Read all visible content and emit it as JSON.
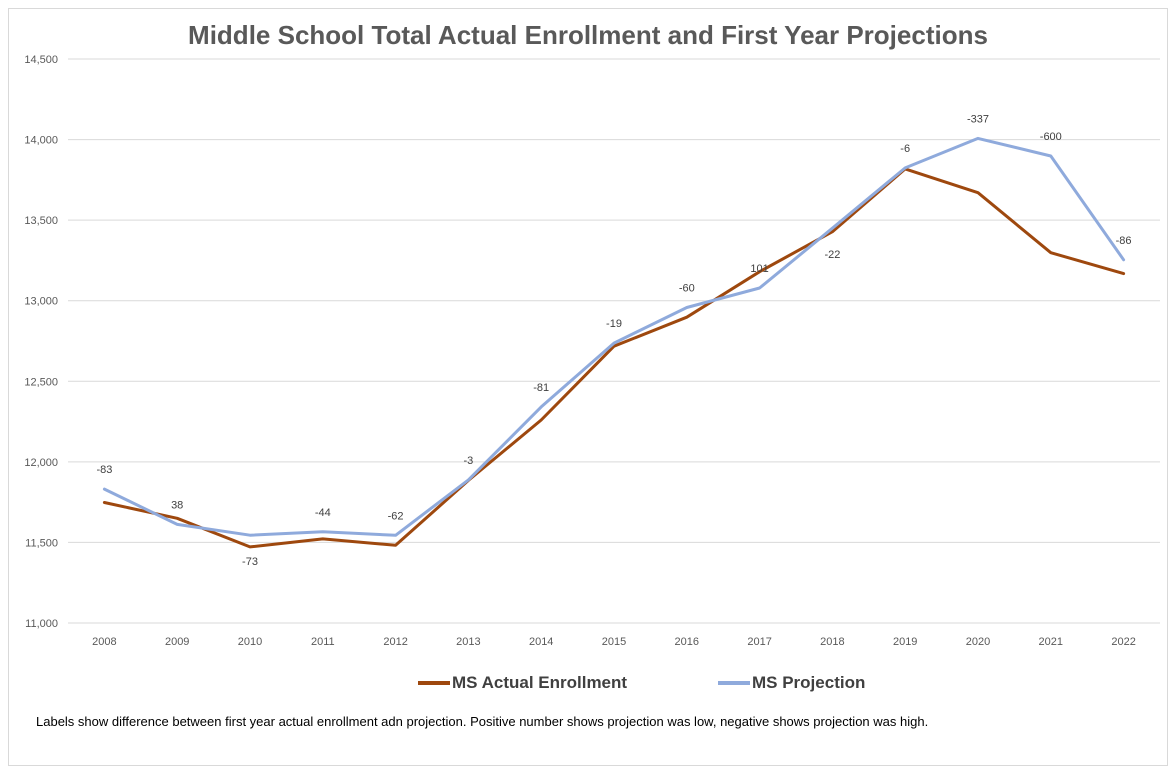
{
  "chart_data": {
    "type": "line",
    "title": "Middle School Total Actual Enrollment and First Year Projections",
    "categories": [
      "2008",
      "2009",
      "2010",
      "2011",
      "2012",
      "2013",
      "2014",
      "2015",
      "2016",
      "2017",
      "2018",
      "2019",
      "2020",
      "2021",
      "2022"
    ],
    "y_ticks": [
      "11,000",
      "11,500",
      "12,000",
      "12,500",
      "13,000",
      "13,500",
      "14,000",
      "14,500"
    ],
    "ylim": [
      11000,
      14500
    ],
    "y_step": 500,
    "grid": true,
    "legend_position": "bottom",
    "series": [
      {
        "name": "MS Actual Enrollment",
        "color": "#9E480E",
        "values": [
          11748,
          11650,
          11472,
          11522,
          11482,
          11885,
          12260,
          12718,
          12898,
          13180,
          13428,
          13818,
          13670,
          13298,
          13168
        ]
      },
      {
        "name": "MS Projection",
        "color": "#8FAADC",
        "values": [
          11831,
          11612,
          11545,
          11566,
          11544,
          11888,
          12341,
          12737,
          12958,
          13079,
          13450,
          13824,
          14007,
          13898,
          13254
        ]
      }
    ],
    "data_labels": [
      "-83",
      "38",
      "-73",
      "-44",
      "-62",
      "-3",
      "-81",
      "-19",
      "-60",
      "101",
      "-22",
      "-6",
      "-337",
      "-600",
      "-86"
    ],
    "label_positions": [
      "above",
      "above",
      "below",
      "above",
      "above",
      "above",
      "above",
      "above",
      "above",
      "above",
      "below",
      "above",
      "above",
      "above",
      "above"
    ]
  },
  "footnote": "Labels show difference between first year actual enrollment adn projection.  Positive number shows projection was low, negative shows projection was high."
}
